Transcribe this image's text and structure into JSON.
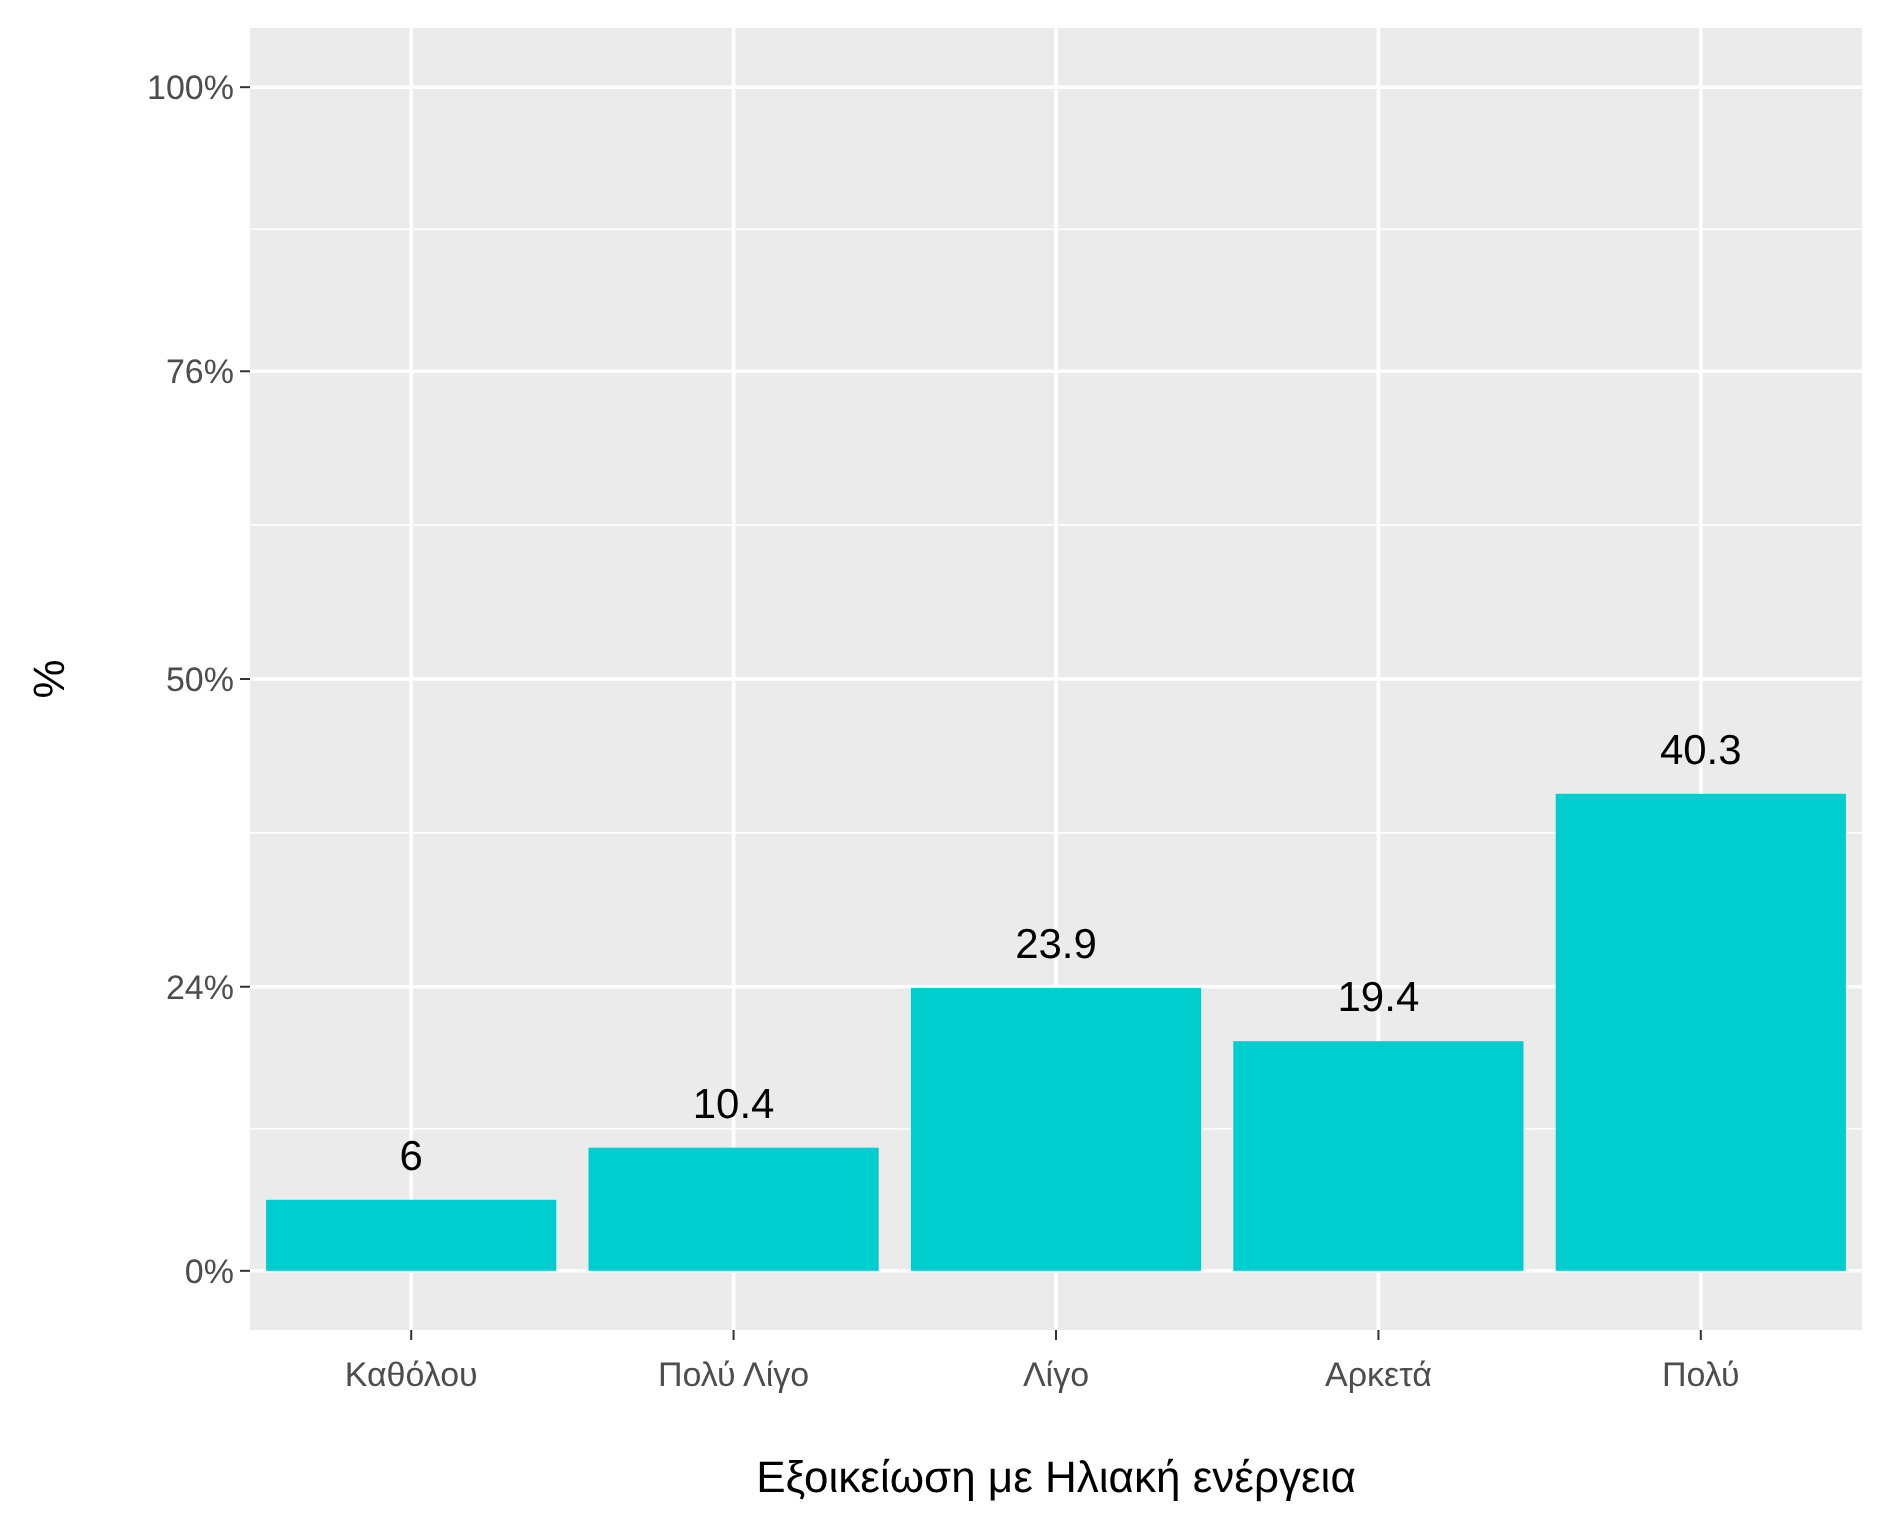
{
  "chart_data": {
    "type": "bar",
    "xlabel": "Εξοικείωση με Ηλιακή ενέργεια",
    "ylabel": "%",
    "categories": [
      "Καθόλου",
      "Πολύ Λίγο",
      "Λίγο",
      "Αρκετά",
      "Πολύ"
    ],
    "values": [
      6,
      10.4,
      23.9,
      19.4,
      40.3
    ],
    "color": "#00cdcd",
    "data_labels": true,
    "ylim": [
      -5,
      105
    ],
    "yticks": [
      {
        "value": 0,
        "label": "0%"
      },
      {
        "value": 24,
        "label": "24%"
      },
      {
        "value": 50,
        "label": "50%"
      },
      {
        "value": 76,
        "label": "76%"
      },
      {
        "value": 100,
        "label": "100%"
      }
    ],
    "grid": true
  }
}
